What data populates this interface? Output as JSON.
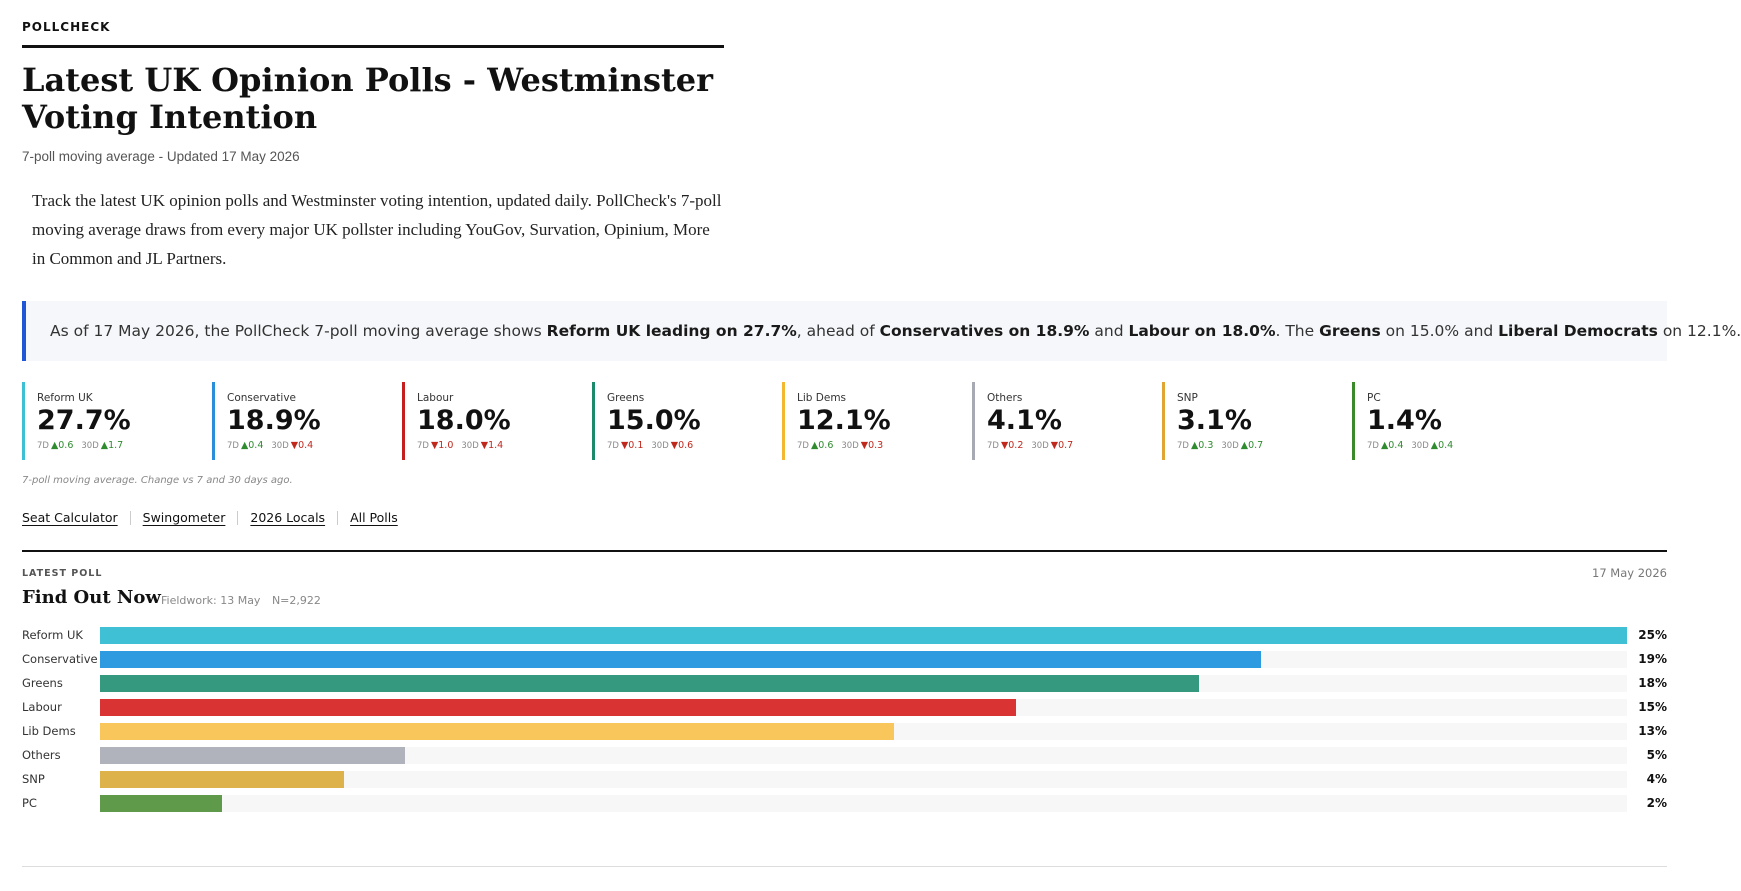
{
  "brand": "POLLCHECK",
  "title": "Latest UK Opinion Polls - Westminster Voting Intention",
  "updated": "7-poll moving average - Updated 17 May 2026",
  "intro": "Track the latest UK opinion polls and Westminster voting intention, updated daily. PollCheck's 7-poll moving average draws from every major UK pollster including YouGov, Survation, Opinium, More in Common and JL Partners.",
  "summary": {
    "p1": "As of 17 May 2026, the PollCheck 7-poll moving average shows ",
    "b1": "Reform UK leading on 27.7%",
    "p2": ", ahead of ",
    "b2": "Conservatives on 18.9%",
    "p3": " and ",
    "b3": "Labour on 18.0%",
    "p4": ". The ",
    "b4": "Greens",
    "p5": " on 15.0% and ",
    "b5": "Liberal Democrats",
    "p6": " on 12.1%."
  },
  "cards": [
    {
      "name": "Reform UK",
      "value": "27.7%",
      "color": "#3dbfd6",
      "d7_label": "7D",
      "d7_dir": "up",
      "d7": "0.6",
      "d30_label": "30D",
      "d30_dir": "up",
      "d30": "1.7"
    },
    {
      "name": "Conservative",
      "value": "18.9%",
      "color": "#2a8fdb",
      "d7_label": "7D",
      "d7_dir": "up",
      "d7": "0.4",
      "d30_label": "30D",
      "d30_dir": "down",
      "d30": "0.4"
    },
    {
      "name": "Labour",
      "value": "18.0%",
      "color": "#c41e1e",
      "d7_label": "7D",
      "d7_dir": "down",
      "d7": "1.0",
      "d30_label": "30D",
      "d30_dir": "down",
      "d30": "1.4"
    },
    {
      "name": "Greens",
      "value": "15.0%",
      "color": "#1b8a6b",
      "d7_label": "7D",
      "d7_dir": "down",
      "d7": "0.1",
      "d30_label": "30D",
      "d30_dir": "down",
      "d30": "0.6"
    },
    {
      "name": "Lib Dems",
      "value": "12.1%",
      "color": "#f5b731",
      "d7_label": "7D",
      "d7_dir": "up",
      "d7": "0.6",
      "d30_label": "30D",
      "d30_dir": "down",
      "d30": "0.3"
    },
    {
      "name": "Others",
      "value": "4.1%",
      "color": "#a7aab2",
      "d7_label": "7D",
      "d7_dir": "down",
      "d7": "0.2",
      "d30_label": "30D",
      "d30_dir": "down",
      "d30": "0.7"
    },
    {
      "name": "SNP",
      "value": "3.1%",
      "color": "#e0a532",
      "d7_label": "7D",
      "d7_dir": "up",
      "d7": "0.3",
      "d30_label": "30D",
      "d30_dir": "up",
      "d30": "0.7"
    },
    {
      "name": "PC",
      "value": "1.4%",
      "color": "#3a8a2a",
      "d7_label": "7D",
      "d7_dir": "up",
      "d7": "0.4",
      "d30_label": "30D",
      "d30_dir": "up",
      "d30": "0.4"
    }
  ],
  "footnote": "7-poll moving average. Change vs 7 and 30 days ago.",
  "links": [
    "Seat Calculator",
    "Swingometer",
    "2026 Locals",
    "All Polls"
  ],
  "latest": {
    "label": "LATEST POLL",
    "date": "17 May 2026",
    "pollster": "Find Out Now",
    "fieldwork": "Fieldwork: 13 May",
    "sample": "N=2,922"
  },
  "chart_data": {
    "type": "bar",
    "orientation": "horizontal",
    "categories": [
      "Reform UK",
      "Conservative",
      "Greens",
      "Labour",
      "Lib Dems",
      "Others",
      "SNP",
      "PC"
    ],
    "values": [
      25,
      19,
      18,
      15,
      13,
      5,
      4,
      2
    ],
    "value_labels": [
      "25%",
      "19%",
      "18%",
      "15%",
      "13%",
      "5%",
      "4%",
      "2%"
    ],
    "colors": [
      "#40c0d4",
      "#2e9be0",
      "#35997f",
      "#d93333",
      "#f8c65a",
      "#b0b3bb",
      "#ddb24a",
      "#5e9a4a"
    ],
    "xlim": [
      0,
      25
    ]
  }
}
